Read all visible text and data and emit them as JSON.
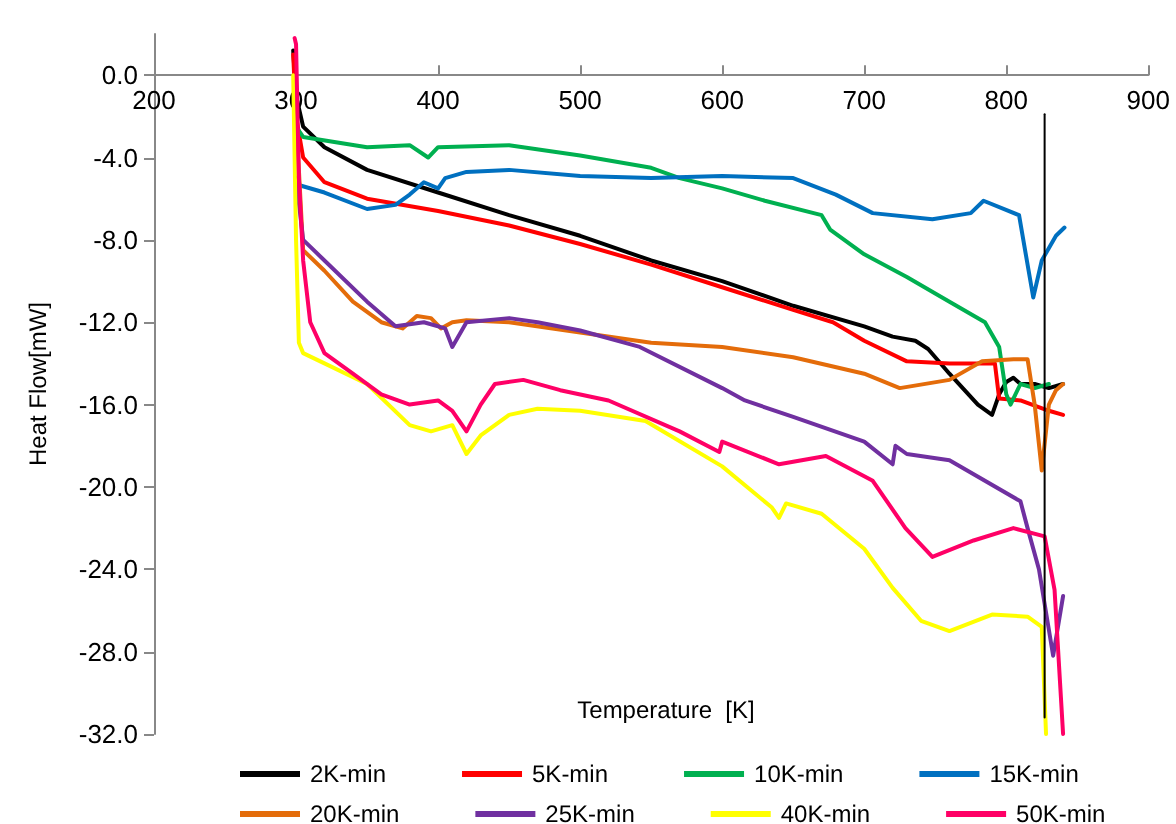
{
  "chart_data": {
    "type": "line",
    "xlabel": "Temperature  [K]",
    "ylabel": "Heat Flow[mW]",
    "xlim": [
      200,
      900
    ],
    "xticks": [
      200,
      300,
      400,
      500,
      600,
      700,
      800,
      900
    ],
    "ylim": [
      -32,
      2
    ],
    "yticks": [
      {
        "value": -32,
        "label": "-32.0"
      },
      {
        "value": -28,
        "label": "-28.0"
      },
      {
        "value": -24,
        "label": "-24.0"
      },
      {
        "value": -20,
        "label": "-20.0"
      },
      {
        "value": -16,
        "label": "-16.0"
      },
      {
        "value": -12,
        "label": "-12.0"
      },
      {
        "value": -8,
        "label": "-8.0"
      },
      {
        "value": -4,
        "label": "-4.0"
      },
      {
        "value": 0,
        "label": "0.0"
      }
    ],
    "grid": false,
    "legend": "bottom",
    "marker": "none",
    "line_style": "solid",
    "series": [
      {
        "name": "2K-min",
        "color": "#000000",
        "x": [
          298,
          300,
          305,
          320,
          350,
          400,
          450,
          500,
          550,
          600,
          650,
          700,
          720,
          736,
          745,
          760,
          780,
          790,
          795,
          800,
          805,
          810,
          820,
          830,
          840
        ],
        "values": [
          1.2,
          -1,
          -2.5,
          -3.5,
          -4.6,
          -5.7,
          -6.8,
          -7.8,
          -9.0,
          -10.0,
          -11.2,
          -12.2,
          -12.7,
          -12.9,
          -13.3,
          -14.5,
          -16.0,
          -16.5,
          -15.5,
          -14.9,
          -14.7,
          -15.0,
          -15.0,
          -15.2,
          -15.0
        ]
      },
      {
        "name": "5K-min",
        "color": "#ff0000",
        "x": [
          298,
          300,
          305,
          320,
          350,
          400,
          450,
          500,
          550,
          600,
          650,
          678,
          700,
          730,
          760,
          780,
          792,
          795,
          810,
          830,
          840
        ],
        "values": [
          1.0,
          -2,
          -4,
          -5.2,
          -6.0,
          -6.6,
          -7.3,
          -8.2,
          -9.2,
          -10.3,
          -11.4,
          -12.0,
          -12.9,
          -13.9,
          -14.0,
          -14.0,
          -14.0,
          -15.7,
          -15.8,
          -16.3,
          -16.5
        ]
      },
      {
        "name": "10K-min",
        "color": "#00b050",
        "x": [
          300,
          305,
          350,
          380,
          393,
          400,
          450,
          500,
          550,
          570,
          600,
          630,
          670,
          676,
          700,
          730,
          760,
          785,
          795,
          800,
          803,
          810,
          820,
          830
        ],
        "values": [
          -2.5,
          -3.0,
          -3.5,
          -3.4,
          -4.0,
          -3.5,
          -3.4,
          -3.9,
          -4.5,
          -5.0,
          -5.5,
          -6.1,
          -6.8,
          -7.5,
          -8.7,
          -9.8,
          -11.0,
          -12.0,
          -13.2,
          -15.5,
          -16.0,
          -15.0,
          -15.2,
          -15.0
        ]
      },
      {
        "name": "15K-min",
        "color": "#0070c0",
        "x": [
          300,
          320,
          350,
          370,
          380,
          390,
          400,
          405,
          420,
          450,
          500,
          550,
          600,
          650,
          680,
          706,
          748,
          775,
          784,
          809,
          819,
          825,
          835,
          841
        ],
        "values": [
          -5.3,
          -5.7,
          -6.5,
          -6.3,
          -5.8,
          -5.2,
          -5.5,
          -5.0,
          -4.7,
          -4.6,
          -4.9,
          -5.0,
          -4.9,
          -5.0,
          -5.8,
          -6.7,
          -7.0,
          -6.7,
          -6.1,
          -6.8,
          -10.8,
          -9.0,
          -7.8,
          -7.4
        ]
      },
      {
        "name": "20K-min",
        "color": "#e46c0a",
        "x": [
          300,
          305,
          320,
          340,
          360,
          375,
          385,
          395,
          402,
          410,
          420,
          450,
          500,
          550,
          600,
          650,
          700,
          725,
          760,
          783,
          805,
          815,
          820,
          825,
          830,
          835,
          840
        ],
        "values": [
          -2,
          -8.5,
          -9.5,
          -11,
          -12.0,
          -12.3,
          -11.7,
          -11.8,
          -12.3,
          -12.0,
          -11.9,
          -12.0,
          -12.5,
          -13.0,
          -13.2,
          -13.7,
          -14.5,
          -15.2,
          -14.8,
          -13.9,
          -13.8,
          -13.8,
          -16,
          -19.2,
          -16,
          -15.3,
          -15.0
        ]
      },
      {
        "name": "25K-min",
        "color": "#7030a0",
        "x": [
          300,
          305,
          320,
          350,
          370,
          390,
          405,
          410,
          420,
          450,
          470,
          500,
          542,
          600,
          616,
          650,
          700,
          720,
          722,
          730,
          760,
          810,
          815,
          823,
          833,
          840
        ],
        "values": [
          -5,
          -8,
          -9,
          -11,
          -12.2,
          -12.0,
          -12.3,
          -13.2,
          -12.0,
          -11.8,
          -12.0,
          -12.4,
          -13.2,
          -15.2,
          -15.8,
          -16.6,
          -17.8,
          -18.9,
          -18.0,
          -18.4,
          -18.7,
          -20.7,
          -22,
          -24,
          -28.2,
          -25.3
        ]
      },
      {
        "name": "40K-min",
        "color": "#ffff00",
        "x": [
          298,
          300,
          302,
          305,
          320,
          350,
          380,
          395,
          410,
          420,
          430,
          450,
          470,
          500,
          546,
          600,
          635,
          640,
          645,
          670,
          700,
          720,
          740,
          760,
          790,
          815,
          825,
          828
        ],
        "values": [
          0,
          -8,
          -13,
          -13.5,
          -14,
          -15,
          -17,
          -17.3,
          -17.0,
          -18.4,
          -17.5,
          -16.5,
          -16.2,
          -16.3,
          -16.8,
          -19.0,
          -21.0,
          -21.5,
          -20.8,
          -21.3,
          -23.0,
          -24.9,
          -26.5,
          -27.0,
          -26.2,
          -26.3,
          -26.8,
          -32
        ]
      },
      {
        "name": "50K-min",
        "color": "#ff0066",
        "x": [
          299,
          300,
          302,
          305,
          310,
          320,
          340,
          360,
          380,
          400,
          410,
          420,
          430,
          440,
          460,
          486,
          520,
          570,
          598,
          600,
          640,
          673,
          706,
          729,
          748,
          777,
          805,
          827,
          834,
          840
        ],
        "values": [
          1.8,
          1.5,
          -5,
          -9,
          -12,
          -13.5,
          -14.5,
          -15.5,
          -16,
          -15.8,
          -16.3,
          -17.3,
          -16,
          -15,
          -14.8,
          -15.3,
          -15.8,
          -17.3,
          -18.3,
          -17.8,
          -18.9,
          -18.5,
          -19.7,
          -22,
          -23.4,
          -22.6,
          -22,
          -22.4,
          -25,
          -32
        ]
      },
      {
        "color": "#000000",
        "x": [
          827,
          827
        ],
        "values": [
          -1.9,
          -31.2
        ]
      }
    ]
  }
}
